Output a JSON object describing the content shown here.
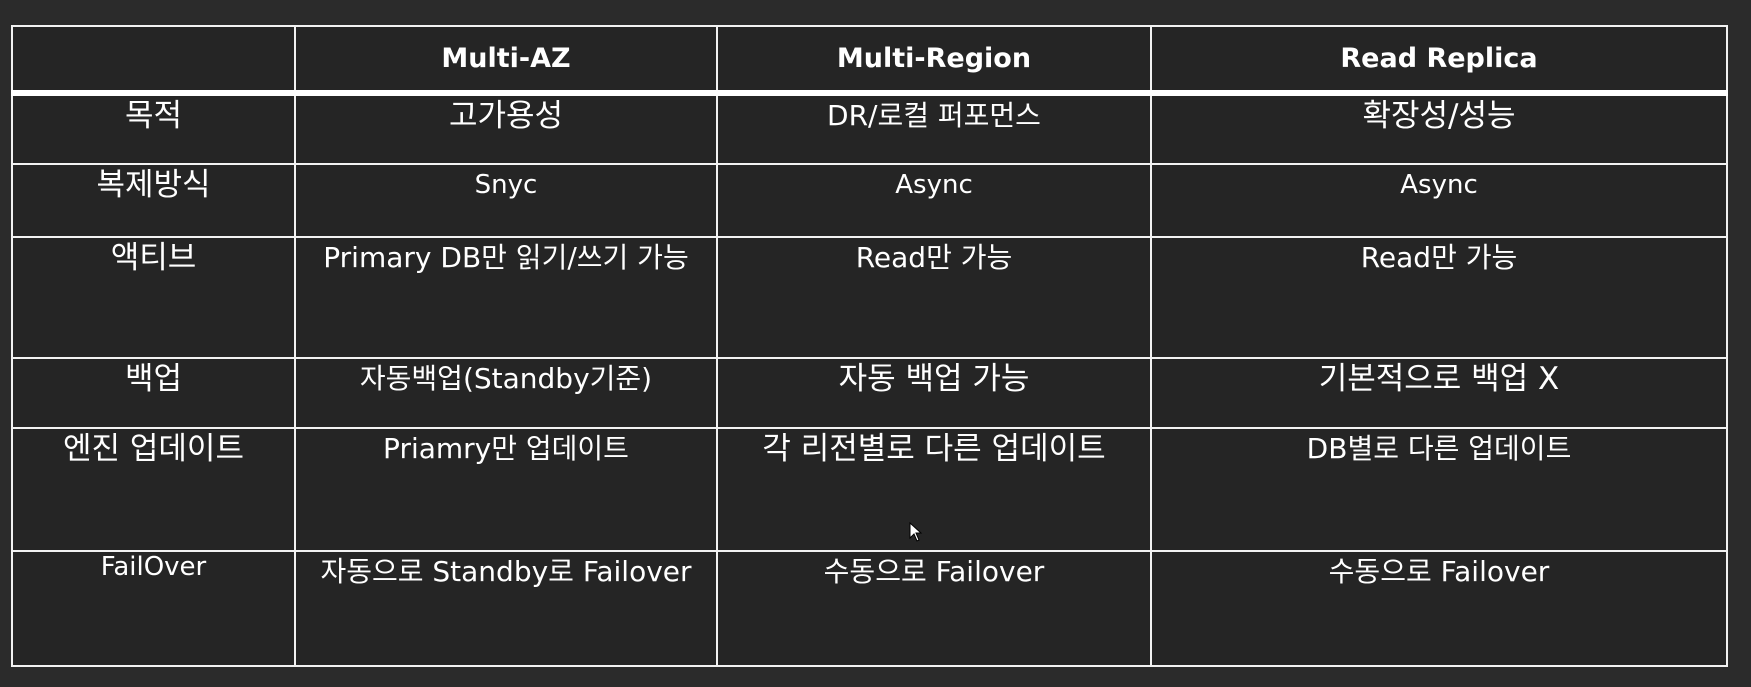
{
  "table": {
    "headers": [
      "",
      "Multi-AZ",
      "Multi-Region",
      "Read Replica"
    ],
    "rows": [
      {
        "label": "목적",
        "cells": [
          "고가용성",
          "DR/로컬 퍼포먼스",
          "확장성/성능"
        ]
      },
      {
        "label": "복제방식",
        "cells": [
          "Snyc",
          "Async",
          "Async"
        ]
      },
      {
        "label": "액티브",
        "cells": [
          "Primary DB만 읽기/쓰기 가능",
          "Read만 가능",
          "Read만 가능"
        ]
      },
      {
        "label": "백업",
        "cells": [
          "자동백업(Standby기준)",
          "자동 백업 가능",
          "기본적으로 백업 X"
        ]
      },
      {
        "label": "엔진 업데이트",
        "cells": [
          "Priamry만 업데이트",
          "각 리전별로 다른 업데이트",
          "DB별로 다른 업데이트"
        ]
      },
      {
        "label": "FailOver",
        "cells": [
          "자동으로 Standby로 Failover",
          "수동으로 Failover",
          "수동으로 Failover"
        ]
      }
    ]
  },
  "cursor": {
    "icon": "mouse-pointer-icon"
  }
}
